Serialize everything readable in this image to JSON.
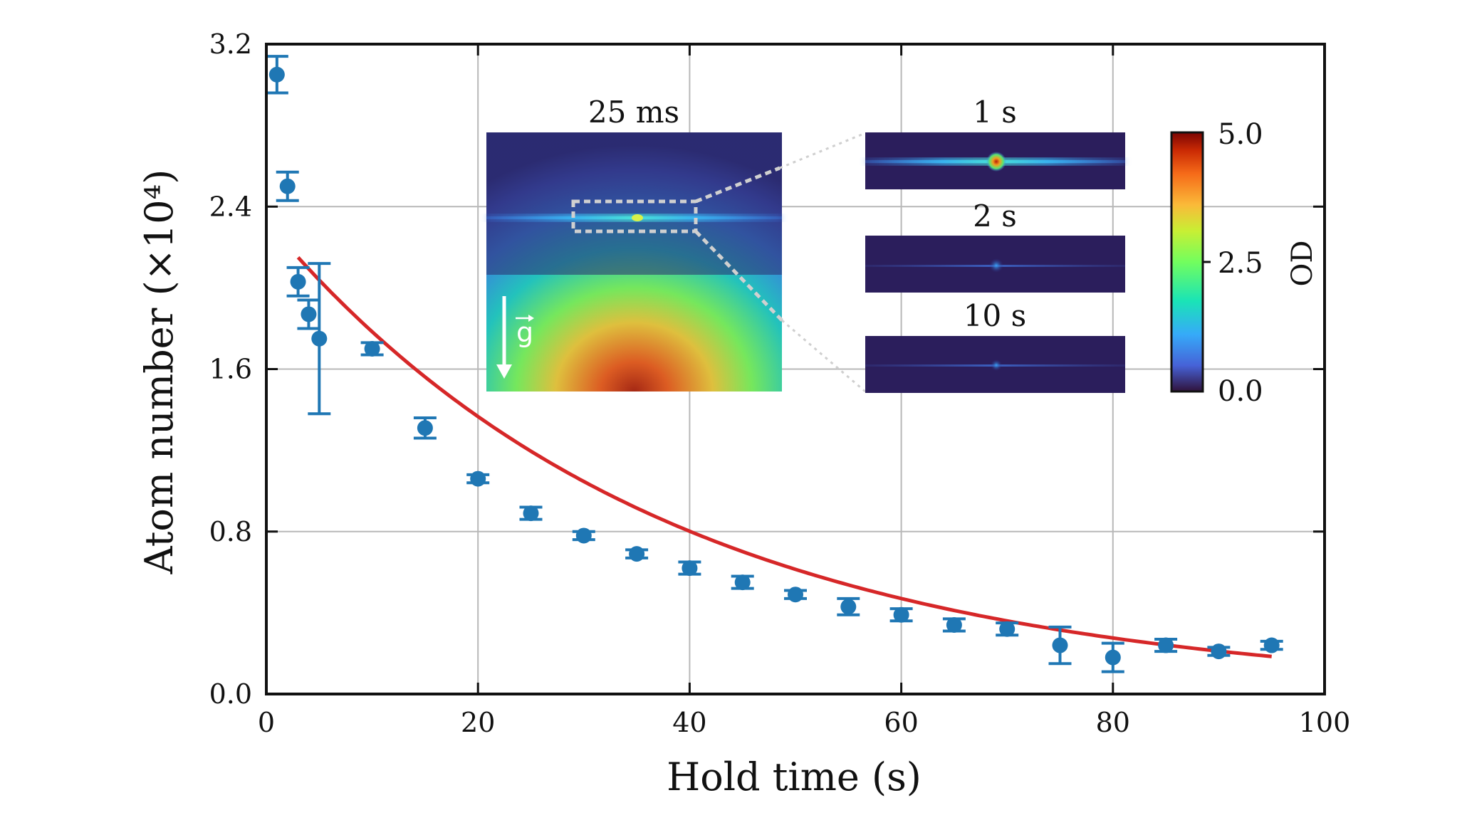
{
  "chart_data": {
    "type": "scatter",
    "xlabel": "Hold time (s)",
    "ylabel": "Atom number (×10⁴)",
    "xlim": [
      0,
      100
    ],
    "ylim": [
      0.0,
      3.2
    ],
    "x_ticks": [
      "0",
      "20",
      "40",
      "60",
      "80",
      "100"
    ],
    "y_ticks": [
      "0.0",
      "0.8",
      "1.6",
      "2.4",
      "3.2"
    ],
    "grid": true,
    "series": [
      {
        "kind": "points_with_error_bars",
        "color": "#1f77b4",
        "x": [
          1,
          2,
          3,
          4,
          5,
          10,
          15,
          20,
          25,
          30,
          35,
          40,
          45,
          50,
          55,
          60,
          65,
          70,
          75,
          80,
          85,
          90,
          95
        ],
        "y": [
          3.05,
          2.5,
          2.03,
          1.87,
          1.75,
          1.7,
          1.31,
          1.06,
          0.89,
          0.78,
          0.69,
          0.62,
          0.55,
          0.49,
          0.43,
          0.39,
          0.34,
          0.32,
          0.24,
          0.18,
          0.24,
          0.21,
          0.24
        ],
        "err": [
          0.09,
          0.07,
          0.07,
          0.07,
          0.37,
          0.03,
          0.05,
          0.02,
          0.03,
          0.02,
          0.02,
          0.03,
          0.03,
          0.02,
          0.04,
          0.03,
          0.03,
          0.03,
          0.09,
          0.07,
          0.03,
          0.02,
          0.02
        ]
      },
      {
        "kind": "fit_curve",
        "color": "#d62728",
        "model": "exponential decay",
        "x_start": 3,
        "x_end": 95,
        "amplitude": 2.15,
        "tau": 37.5
      }
    ],
    "insets": {
      "main_image_title": "25 ms",
      "gravity_label": "g",
      "panel_titles": [
        "1 s",
        "2 s",
        "10 s"
      ],
      "colorbar": {
        "label": "OD",
        "ticks": [
          "5.0",
          "2.5",
          "0.0"
        ]
      }
    }
  }
}
